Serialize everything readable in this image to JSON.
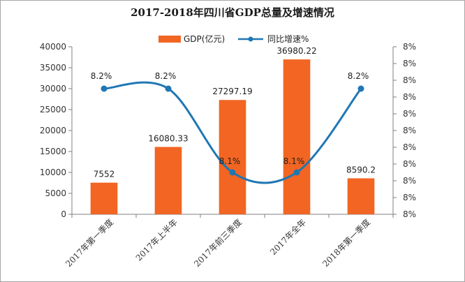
{
  "chart_data": {
    "type": "bar+line",
    "title": "2017-2018年四川省GDP总量及增速情况",
    "categories": [
      "2017年第一季度",
      "2017年上半年",
      "2017年前三季度",
      "2017年全年",
      "2018年第一季度"
    ],
    "series": [
      {
        "name": "GDP(亿元)",
        "type": "bar",
        "axis": "left",
        "values": [
          7552,
          16080.33,
          27297.19,
          36980.22,
          8590.2
        ],
        "labels": [
          "7552",
          "16080.33",
          "27297.19",
          "36980.22",
          "8590.2"
        ],
        "color": "#f26522"
      },
      {
        "name": "同比增速%",
        "type": "line",
        "axis": "right",
        "values": [
          8.2,
          8.2,
          8.1,
          8.1,
          8.2
        ],
        "labels": [
          "8.2%",
          "8.2%",
          "8.1%",
          "8.1%",
          "8.2%"
        ],
        "color": "#1f77b4",
        "smooth": true
      }
    ],
    "y_left": {
      "ylim": [
        0,
        40000
      ],
      "ticks": [
        "0",
        "5000",
        "10000",
        "15000",
        "20000",
        "25000",
        "30000",
        "35000",
        "40000"
      ]
    },
    "y_right": {
      "ticks": [
        "8%",
        "8%",
        "8%",
        "8%",
        "8%",
        "8%",
        "8%",
        "8%",
        "8%",
        "8%",
        "8%"
      ]
    },
    "legend": "top-center",
    "grid": false
  }
}
